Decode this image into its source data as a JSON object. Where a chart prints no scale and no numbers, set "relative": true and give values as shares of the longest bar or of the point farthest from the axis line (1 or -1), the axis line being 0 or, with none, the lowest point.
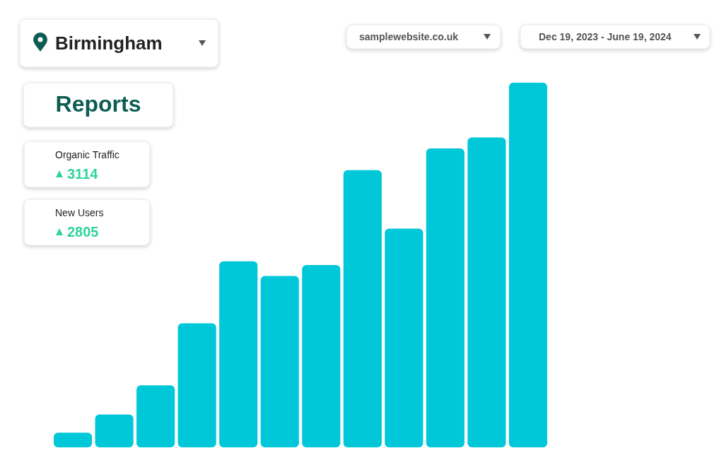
{
  "chart_data": {
    "type": "bar",
    "title": "Reports",
    "categories": [
      null,
      null,
      null,
      null,
      null,
      null,
      null,
      null,
      null,
      null,
      null,
      null
    ],
    "values": [
      0.04,
      0.09,
      0.17,
      0.34,
      0.51,
      0.47,
      0.5,
      0.76,
      0.6,
      0.82,
      0.85,
      1
    ],
    "color": "#00c8d9",
    "relative": true,
    "annotations": [
      "Birmingham",
      "samplewebsite.co.uk",
      "Dec 19, 2023 - June 19, 2024",
      "Organic Traffic",
      "3114",
      "New Users",
      "2805"
    ]
  }
}
